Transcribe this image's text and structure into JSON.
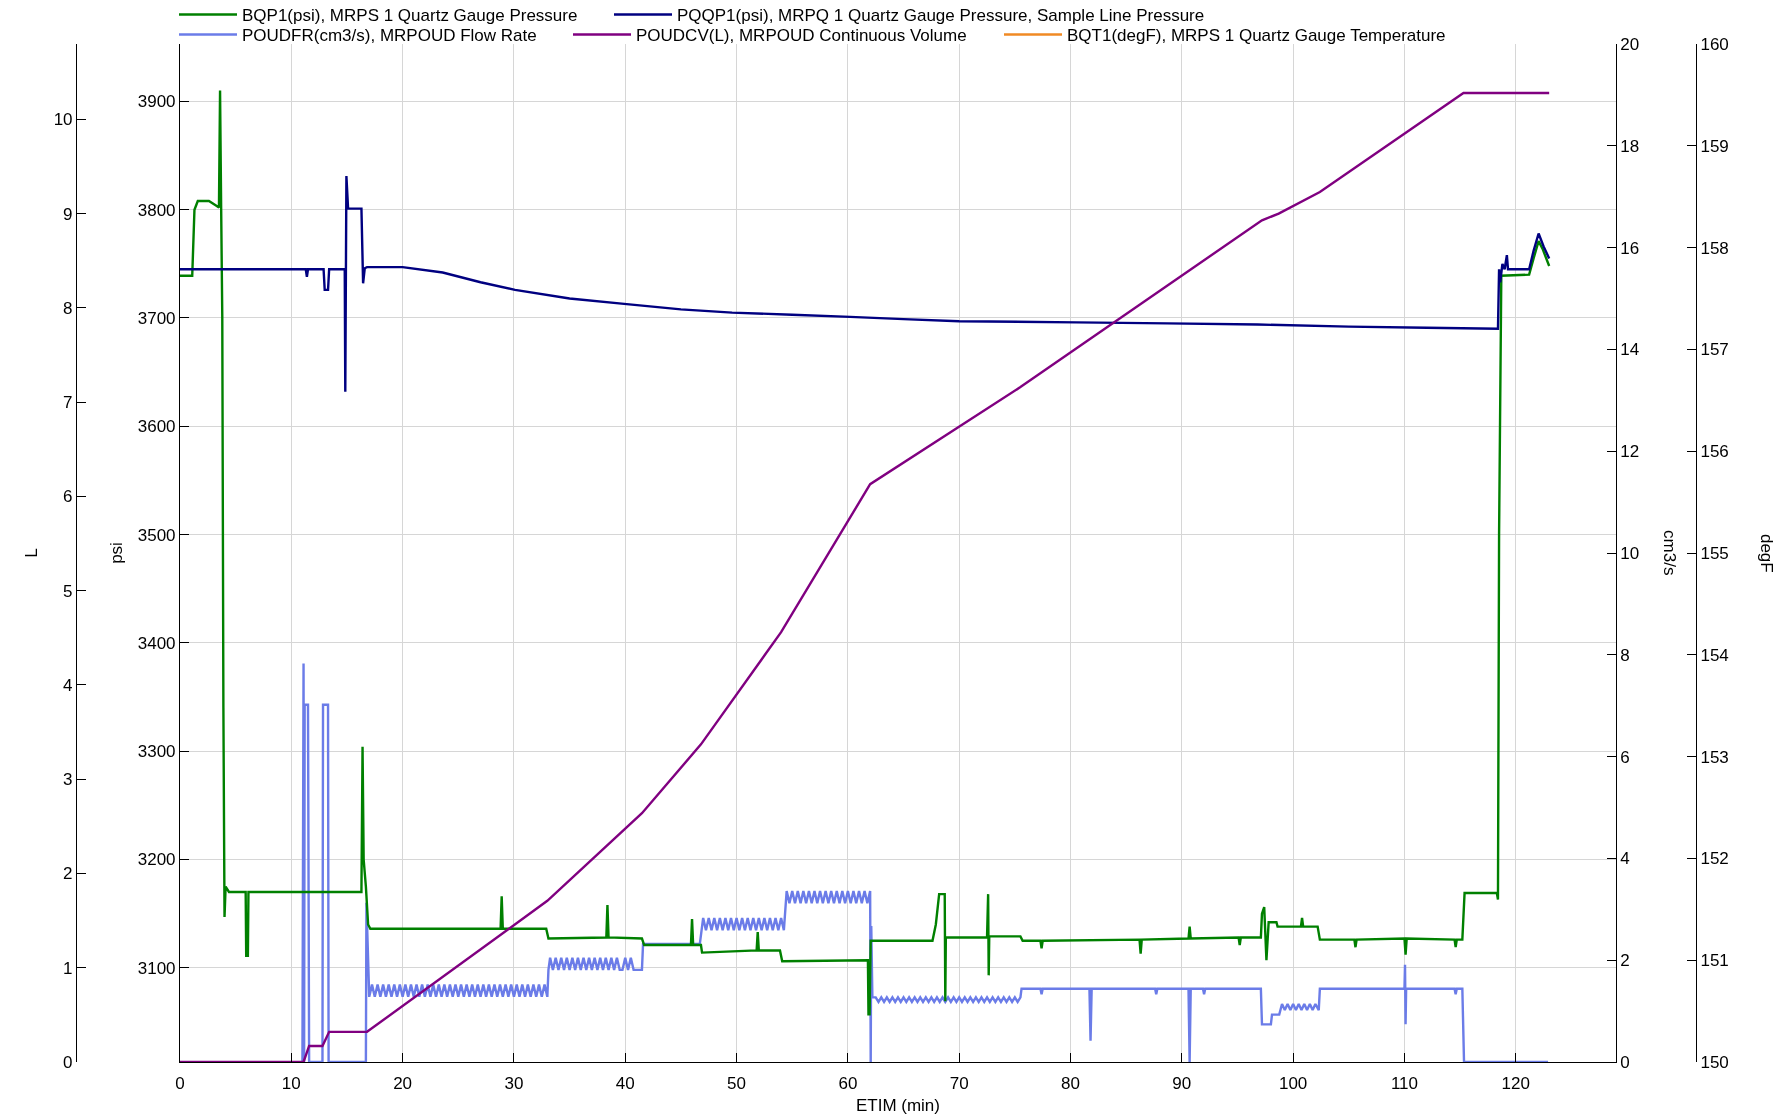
{
  "chart_data": {
    "type": "line",
    "xlabel": "ETIM (min)",
    "ylabel": "psi",
    "y2label": "cm3/s",
    "y3label": "L",
    "annotations": [
      "degF",
      "150",
      "151",
      "152",
      "153",
      "154",
      "155",
      "156",
      "157",
      "158",
      "159",
      "160"
    ],
    "xlim": [
      0,
      129
    ],
    "xticks": [
      0,
      10,
      20,
      30,
      40,
      50,
      60,
      70,
      80,
      90,
      100,
      110,
      120
    ],
    "ylim": [
      3013,
      3953
    ],
    "yticks": [
      3100,
      3200,
      3300,
      3400,
      3500,
      3600,
      3700,
      3800,
      3900
    ],
    "y2lim": [
      0,
      20
    ],
    "y2ticks": [
      0,
      2,
      4,
      6,
      8,
      10,
      12,
      14,
      16,
      18,
      20
    ],
    "y3lim": [
      0,
      10.8
    ],
    "y3ticks": [
      0,
      1,
      2,
      3,
      4,
      5,
      6,
      7,
      8,
      9,
      10
    ],
    "grid": true,
    "legend": "top",
    "series": [
      {
        "name": "BQP1(psi), MRPS 1 Quartz Gauge Pressure",
        "color": "#008000",
        "x": [
          0,
          1.1,
          1.3,
          1.6,
          2.6,
          3.2,
          3.5,
          3.6,
          3.7,
          3.8,
          3.9,
          4.0,
          4.1,
          4.4,
          5.9,
          5.95,
          6.1,
          6.15,
          16.3,
          16.4,
          16.5,
          16.7,
          16.9,
          17.1,
          28.8,
          28.9,
          29.0,
          32.9,
          33.1,
          38.3,
          38.4,
          38.5,
          41.5,
          41.7,
          45.9,
          46.0,
          46.1,
          46.8,
          46.9,
          51.8,
          51.9,
          52.0,
          53.9,
          54.1,
          61.8,
          61.85,
          61.95,
          62.05,
          67.6,
          67.9,
          68.2,
          68.7,
          68.75,
          68.8,
          72.5,
          72.6,
          72.65,
          72.7,
          75.5,
          75.7,
          77.3,
          77.4,
          77.5,
          86.2,
          86.3,
          86.4,
          90.6,
          90.7,
          90.8,
          95.1,
          95.2,
          95.3,
          97.1,
          97.2,
          97.4,
          97.6,
          97.8,
          98.5,
          98.6,
          100.7,
          100.8,
          100.9,
          102.2,
          102.4,
          105.5,
          105.6,
          105.7,
          110.0,
          110.1,
          110.2,
          114.5,
          114.6,
          114.7,
          115.2,
          115.4,
          118.3,
          118.4,
          118.5,
          118.7,
          121.2,
          121.6,
          122.05,
          122.4,
          123.0
        ],
        "values": [
          3739,
          3739,
          3800,
          3808,
          3808,
          3804,
          3802,
          3910,
          3800,
          3700,
          3340,
          3147,
          3175,
          3170,
          3170,
          3111,
          3111,
          3170,
          3170,
          3304,
          3200,
          3175,
          3140,
          3136,
          3136,
          3166,
          3136,
          3136,
          3127,
          3128,
          3158,
          3128,
          3127,
          3121,
          3121,
          3145,
          3121,
          3121,
          3114,
          3116,
          3133,
          3116,
          3116,
          3106,
          3107,
          3057,
          3057,
          3125,
          3125,
          3140,
          3168,
          3168,
          3069,
          3128,
          3128,
          3168,
          3093,
          3129,
          3129,
          3125,
          3125,
          3118,
          3125,
          3126,
          3113,
          3126,
          3127,
          3138,
          3127,
          3128,
          3121,
          3128,
          3128,
          3150,
          3156,
          3107,
          3142,
          3142,
          3138,
          3138,
          3146,
          3138,
          3138,
          3126,
          3126,
          3119,
          3126,
          3127,
          3112,
          3127,
          3126,
          3119,
          3126,
          3126,
          3169,
          3169,
          3163,
          3500,
          3739,
          3740,
          3755,
          3771,
          3764,
          3748
        ]
      },
      {
        "name": "PQQP1(psi), MRPQ 1 Quartz Gauge Pressure, Sample Line Pressure",
        "color": "#000080",
        "x": [
          0,
          11.3,
          11.4,
          11.5,
          12.9,
          13.0,
          13.3,
          13.4,
          14.8,
          14.85,
          14.95,
          15.1,
          16.3,
          16.45,
          16.6,
          16.8,
          20.0,
          23.6,
          27.0,
          30.1,
          35.0,
          39.9,
          45.0,
          49.6,
          55.0,
          60.2,
          65.0,
          70.0,
          80.5,
          88.7,
          96.8,
          105.0,
          112.0,
          118.4,
          118.5,
          118.6,
          118.8,
          119.0,
          119.2,
          119.3,
          121.2,
          121.6,
          122.05,
          122.5,
          123.0
        ],
        "values": [
          3745,
          3745,
          3738,
          3745,
          3745,
          3726,
          3726,
          3745,
          3745,
          3632,
          3831,
          3801,
          3801,
          3732,
          3746,
          3747,
          3747,
          3742,
          3733,
          3726,
          3718,
          3713,
          3708,
          3705,
          3703,
          3701,
          3699,
          3697,
          3696,
          3695,
          3694,
          3692,
          3691,
          3690,
          3745,
          3733,
          3750,
          3745,
          3758,
          3745,
          3745,
          3762,
          3778,
          3766,
          3755
        ]
      },
      {
        "name": "POUDFR(cm3/s), MRPOUD Flow Rate",
        "color": "#6b7ce8",
        "axis": "y2",
        "x": [
          11.0,
          11.1,
          11.15,
          11.2,
          11.5,
          11.6,
          12.8,
          12.85,
          13.3,
          13.35,
          16.7,
          16.75,
          17,
          17.25,
          17.5,
          17.75,
          18,
          18.25,
          18.5,
          18.75,
          19,
          19.25,
          19.5,
          19.75,
          20,
          20.25,
          20.5,
          20.75,
          21,
          21.25,
          21.5,
          21.75,
          22,
          22.25,
          22.5,
          22.75,
          23,
          23.25,
          23.5,
          23.75,
          24,
          24.25,
          24.5,
          24.75,
          25,
          25.25,
          25.5,
          25.75,
          26,
          26.25,
          26.5,
          26.75,
          27,
          27.25,
          27.5,
          27.75,
          28,
          28.25,
          28.5,
          28.75,
          29,
          29.25,
          29.5,
          29.75,
          30,
          30.25,
          30.5,
          30.75,
          31,
          31.25,
          31.5,
          31.75,
          32,
          32.25,
          32.5,
          32.75,
          33.0,
          33.1,
          33.25,
          33.5,
          33.75,
          34,
          34.25,
          34.5,
          34.75,
          35,
          35.25,
          35.5,
          35.75,
          36,
          36.25,
          36.5,
          36.75,
          37,
          37.25,
          37.5,
          37.75,
          38,
          38.25,
          38.5,
          38.75,
          39,
          39.25,
          39.5,
          39.75,
          40,
          40.25,
          40.5,
          40.75,
          41.5,
          41.6,
          46.7,
          47,
          47.25,
          47.5,
          47.75,
          48,
          48.25,
          48.5,
          48.75,
          49,
          49.25,
          49.5,
          49.75,
          50,
          50.25,
          50.5,
          50.75,
          51,
          51.25,
          51.5,
          51.75,
          52,
          52.25,
          52.5,
          52.75,
          53,
          53.25,
          53.5,
          53.75,
          54,
          54.25,
          54.5,
          54.75,
          55,
          55.25,
          55.5,
          55.75,
          56,
          56.25,
          56.5,
          56.75,
          57,
          57.25,
          57.5,
          57.75,
          58,
          58.25,
          58.5,
          58.75,
          59,
          59.25,
          59.5,
          59.75,
          60,
          60.25,
          60.5,
          60.75,
          61,
          61.25,
          61.5,
          61.75,
          62,
          62.05,
          62.1,
          62.2,
          62.5,
          62.75,
          63,
          63.25,
          63.5,
          63.75,
          64,
          64.25,
          64.5,
          64.75,
          65,
          65.25,
          65.5,
          65.75,
          66,
          66.25,
          66.5,
          66.75,
          67,
          67.25,
          67.5,
          67.75,
          68,
          68.25,
          68.5,
          68.75,
          69,
          69.25,
          69.5,
          69.75,
          70,
          70.25,
          70.5,
          70.75,
          71,
          71.25,
          71.5,
          71.75,
          72,
          72.25,
          72.5,
          72.75,
          73,
          73.25,
          73.5,
          73.75,
          74,
          74.25,
          74.5,
          74.75,
          75,
          75.25,
          75.5,
          75.6,
          77.3,
          77.4,
          77.5,
          81.7,
          81.8,
          81.9,
          87.6,
          87.7,
          87.8,
          90.6,
          90.7,
          90.8,
          91.9,
          92.0,
          92.1,
          97.1,
          97.2,
          98.0,
          98.1,
          98.75,
          99,
          99.25,
          99.5,
          99.75,
          100,
          100.25,
          100.5,
          100.75,
          101,
          101.25,
          101.5,
          101.75,
          102,
          102.3,
          102.4,
          110.0,
          110.05,
          110.1,
          110.15,
          114.5,
          114.6,
          114.7,
          115.2,
          115.35,
          122.9
        ],
        "values": [
          0,
          7.83,
          0,
          7.02,
          7.02,
          0,
          0,
          7.02,
          7.02,
          0,
          0,
          3.13,
          1.28,
          1.52,
          1.28,
          1.52,
          1.28,
          1.52,
          1.28,
          1.52,
          1.28,
          1.52,
          1.28,
          1.52,
          1.28,
          1.52,
          1.28,
          1.52,
          1.28,
          1.52,
          1.28,
          1.52,
          1.28,
          1.52,
          1.28,
          1.52,
          1.28,
          1.52,
          1.28,
          1.52,
          1.28,
          1.52,
          1.28,
          1.52,
          1.28,
          1.52,
          1.28,
          1.52,
          1.28,
          1.52,
          1.28,
          1.52,
          1.28,
          1.52,
          1.28,
          1.52,
          1.28,
          1.52,
          1.28,
          1.52,
          1.28,
          1.52,
          1.28,
          1.52,
          1.28,
          1.52,
          1.28,
          1.52,
          1.28,
          1.52,
          1.28,
          1.52,
          1.28,
          1.52,
          1.28,
          1.52,
          1.28,
          1.81,
          2.05,
          1.81,
          2.05,
          1.81,
          2.05,
          1.81,
          2.05,
          1.81,
          2.05,
          1.81,
          2.05,
          1.81,
          2.05,
          1.81,
          2.05,
          1.81,
          2.05,
          1.81,
          2.05,
          1.81,
          2.05,
          1.81,
          2.05,
          1.81,
          2.05,
          1.81,
          1.81,
          2.05,
          1.81,
          2.05,
          1.81,
          1.81,
          2.32,
          2.32,
          2.83,
          2.59,
          2.83,
          2.59,
          2.83,
          2.59,
          2.83,
          2.59,
          2.83,
          2.59,
          2.83,
          2.59,
          2.83,
          2.59,
          2.83,
          2.59,
          2.83,
          2.59,
          2.83,
          2.59,
          2.83,
          2.59,
          2.83,
          2.59,
          2.83,
          2.59,
          2.83,
          2.59,
          2.83,
          2.59,
          3.36,
          3.12,
          3.36,
          3.12,
          3.36,
          3.12,
          3.36,
          3.12,
          3.36,
          3.12,
          3.36,
          3.12,
          3.36,
          3.12,
          3.36,
          3.12,
          3.36,
          3.12,
          3.36,
          3.12,
          3.36,
          3.12,
          3.36,
          3.12,
          3.36,
          3.12,
          3.36,
          3.12,
          3.36,
          3.12,
          3.36,
          0,
          2.67,
          1.27,
          1.27,
          1.18,
          1.27,
          1.18,
          1.27,
          1.18,
          1.27,
          1.18,
          1.27,
          1.18,
          1.27,
          1.18,
          1.27,
          1.18,
          1.27,
          1.18,
          1.27,
          1.18,
          1.27,
          1.18,
          1.27,
          1.18,
          1.27,
          1.18,
          1.27,
          1.18,
          1.27,
          1.18,
          1.27,
          1.18,
          1.27,
          1.18,
          1.27,
          1.18,
          1.27,
          1.18,
          1.27,
          1.18,
          1.27,
          1.18,
          1.27,
          1.18,
          1.27,
          1.18,
          1.27,
          1.18,
          1.27,
          1.18,
          1.27,
          1.18,
          1.27,
          1.18,
          1.27,
          1.44,
          1.44,
          1.33,
          1.44,
          1.44,
          0.42,
          1.44,
          1.44,
          1.33,
          1.44,
          1.44,
          0,
          1.44,
          1.44,
          1.33,
          1.44,
          1.44,
          0.74,
          0.74,
          0.93,
          0.93,
          1.14,
          1.02,
          1.14,
          1.02,
          1.14,
          1.02,
          1.14,
          1.02,
          1.14,
          1.02,
          1.14,
          1.02,
          1.14,
          1.02,
          1.44,
          1.44,
          1.91,
          0.74,
          1.44,
          1.44,
          1.33,
          1.44,
          1.44,
          0,
          0
        ]
      },
      {
        "name": "POUDCV(L), MRPOUD Continuous Volume",
        "color": "#800080",
        "axis": "y3",
        "x": [
          0,
          11.1,
          11.6,
          12.8,
          13.4,
          16.8,
          33.0,
          41.5,
          46.8,
          54.0,
          62.0,
          75.5,
          97.2,
          98.7,
          102.4,
          115.3,
          123.0
        ],
        "values": [
          0,
          0,
          0.17,
          0.17,
          0.32,
          0.32,
          1.71,
          2.64,
          3.37,
          4.56,
          6.13,
          7.16,
          8.93,
          9.0,
          9.23,
          10.28,
          10.28
        ]
      },
      {
        "name": "BQT1(degF), MRPS 1 Quartz Gauge Temperature",
        "color": "#f08a24",
        "values": [
          null
        ]
      }
    ]
  }
}
